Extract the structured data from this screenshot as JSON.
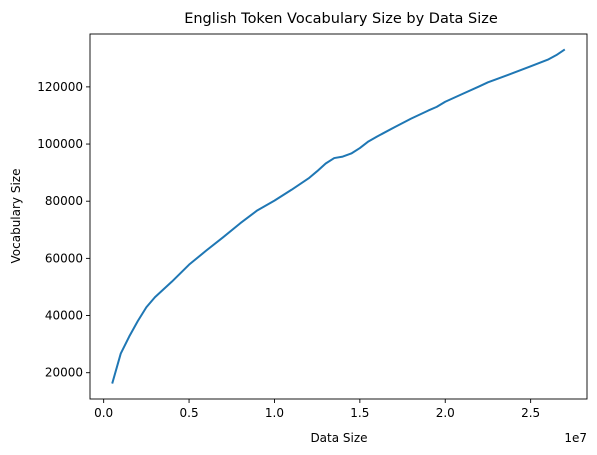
{
  "chart_data": {
    "type": "line",
    "title": "English Token Vocabulary Size by Data Size",
    "xlabel": "Data Size",
    "ylabel": "Vocabulary Size",
    "x_offset_label": "1e7",
    "xlim": [
      -0.08,
      2.83
    ],
    "ylim": [
      10800,
      138500
    ],
    "xticks": [
      {
        "value": 0.0,
        "label": "0.0"
      },
      {
        "value": 0.5,
        "label": "0.5"
      },
      {
        "value": 1.0,
        "label": "1.0"
      },
      {
        "value": 1.5,
        "label": "1.5"
      },
      {
        "value": 2.0,
        "label": "2.0"
      },
      {
        "value": 2.5,
        "label": "2.5"
      }
    ],
    "yticks": [
      {
        "value": 20000,
        "label": "20000"
      },
      {
        "value": 40000,
        "label": "40000"
      },
      {
        "value": 60000,
        "label": "60000"
      },
      {
        "value": 80000,
        "label": "80000"
      },
      {
        "value": 100000,
        "label": "100000"
      },
      {
        "value": 120000,
        "label": "120000"
      }
    ],
    "grid": false,
    "series": [
      {
        "color": "#1f77b4",
        "x": [
          0.05,
          0.1,
          0.15,
          0.2,
          0.25,
          0.3,
          0.4,
          0.5,
          0.6,
          0.7,
          0.8,
          0.9,
          1.0,
          1.1,
          1.2,
          1.25,
          1.3,
          1.35,
          1.4,
          1.45,
          1.5,
          1.55,
          1.6,
          1.7,
          1.8,
          1.9,
          1.95,
          2.0,
          2.1,
          2.2,
          2.25,
          2.3,
          2.4,
          2.5,
          2.6,
          2.65,
          2.7
        ],
        "y": [
          16200,
          26700,
          32700,
          38100,
          42900,
          46400,
          51900,
          57800,
          62700,
          67400,
          72300,
          76800,
          80200,
          84000,
          88000,
          90500,
          93200,
          95100,
          95600,
          96700,
          98600,
          100900,
          102600,
          105800,
          108900,
          111700,
          113000,
          114800,
          117500,
          120200,
          121600,
          122700,
          124900,
          127200,
          129500,
          131100,
          133100
        ]
      }
    ]
  }
}
